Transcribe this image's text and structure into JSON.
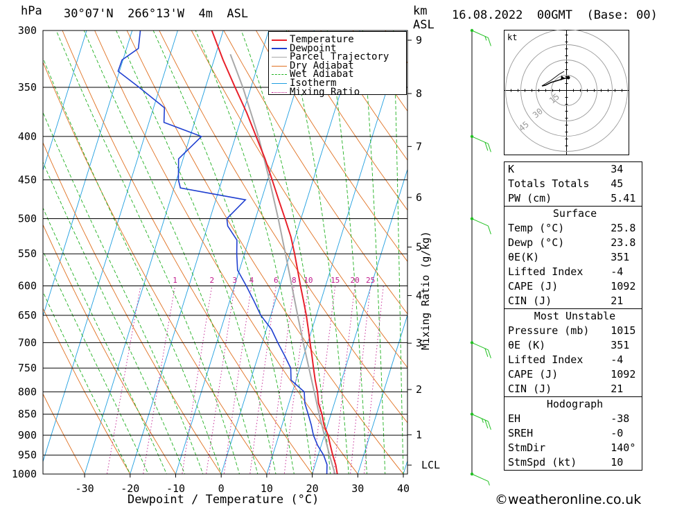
{
  "header": {
    "left_unit": "hPa",
    "location": "30°07'N  266°13'W  4m  ASL",
    "km_unit": "km",
    "asl_unit": "ASL",
    "datetime": "16.08.2022  00GMT  (Base: 00)"
  },
  "chart_data": {
    "type": "skew-t",
    "xlabel": "Dewpoint / Temperature (°C)",
    "y2label": "Mixing Ratio (g/kg)",
    "pressure_ticks": [
      300,
      350,
      400,
      450,
      500,
      550,
      600,
      650,
      700,
      750,
      800,
      850,
      900,
      950,
      1000
    ],
    "temperature_ticks": [
      -30,
      -20,
      -10,
      0,
      10,
      20,
      30,
      40
    ],
    "km_ticks": [
      1,
      2,
      3,
      4,
      5,
      6,
      7,
      8,
      9
    ],
    "lcl_label": "LCL",
    "mixing_ratio_labels": [
      "1",
      "2",
      "3",
      "4",
      "6",
      "8",
      "10",
      "15",
      "20",
      "25"
    ],
    "legend": [
      "Temperature",
      "Dewpoint",
      "Parcel Trajectory",
      "Dry Adiabat",
      "Wet Adiabat",
      "Isotherm",
      "Mixing Ratio"
    ],
    "colors": {
      "temperature": "#e8202a",
      "dewpoint": "#1f3fd0",
      "parcel": "#a8a8a8",
      "dry_adiabat": "#e07020",
      "wet_adiabat": "#20b020",
      "isotherm": "#1e9ee0",
      "mixing_ratio": "#c0188c"
    },
    "temperature": [
      [
        1010,
        25.8
      ],
      [
        1000,
        25.5
      ],
      [
        975,
        24.5
      ],
      [
        950,
        23.2
      ],
      [
        925,
        22.0
      ],
      [
        900,
        20.8
      ],
      [
        875,
        19.2
      ],
      [
        850,
        18.0
      ],
      [
        825,
        16.5
      ],
      [
        800,
        15.5
      ],
      [
        775,
        14.2
      ],
      [
        750,
        13.0
      ],
      [
        725,
        11.8
      ],
      [
        700,
        10.5
      ],
      [
        675,
        9.2
      ],
      [
        650,
        7.8
      ],
      [
        625,
        6.2
      ],
      [
        600,
        4.5
      ],
      [
        575,
        2.8
      ],
      [
        550,
        1.0
      ],
      [
        525,
        -1.0
      ],
      [
        500,
        -3.5
      ],
      [
        475,
        -6.2
      ],
      [
        450,
        -9.0
      ],
      [
        425,
        -12.0
      ],
      [
        400,
        -15.5
      ],
      [
        375,
        -19.2
      ],
      [
        350,
        -23.5
      ],
      [
        325,
        -28.0
      ],
      [
        300,
        -32.5
      ]
    ],
    "dewpoint": [
      [
        1010,
        23.8
      ],
      [
        1000,
        23.2
      ],
      [
        975,
        22.6
      ],
      [
        950,
        21.2
      ],
      [
        925,
        19.2
      ],
      [
        900,
        17.6
      ],
      [
        875,
        16.4
      ],
      [
        850,
        15.0
      ],
      [
        825,
        13.5
      ],
      [
        800,
        12.6
      ],
      [
        775,
        8.9
      ],
      [
        750,
        8.0
      ],
      [
        725,
        5.8
      ],
      [
        700,
        3.4
      ],
      [
        675,
        1.1
      ],
      [
        650,
        -2.2
      ],
      [
        625,
        -4.7
      ],
      [
        600,
        -7.4
      ],
      [
        575,
        -10.4
      ],
      [
        550,
        -11.7
      ],
      [
        530,
        -12.6
      ],
      [
        510,
        -15.6
      ],
      [
        500,
        -16.3
      ],
      [
        475,
        -13.5
      ],
      [
        460,
        -28.6
      ],
      [
        450,
        -29.6
      ],
      [
        425,
        -31.0
      ],
      [
        400,
        -27.5
      ],
      [
        385,
        -36.7
      ],
      [
        370,
        -37.6
      ],
      [
        350,
        -44.6
      ],
      [
        335,
        -50.3
      ],
      [
        325,
        -50.2
      ],
      [
        315,
        -47.4
      ],
      [
        300,
        -48.2
      ]
    ],
    "parcel": [
      [
        1010,
        25.8
      ],
      [
        1000,
        25.0
      ],
      [
        950,
        22.5
      ],
      [
        900,
        20.0
      ],
      [
        850,
        17.4
      ],
      [
        800,
        14.8
      ],
      [
        750,
        12.0
      ],
      [
        700,
        9.0
      ],
      [
        650,
        5.9
      ],
      [
        600,
        2.6
      ],
      [
        550,
        -1.0
      ],
      [
        500,
        -5.0
      ],
      [
        450,
        -9.6
      ],
      [
        400,
        -15.0
      ],
      [
        350,
        -21.8
      ],
      [
        320,
        -26.8
      ]
    ],
    "wind": [
      {
        "p": 300,
        "speed_kt": 15
      },
      {
        "p": 400,
        "speed_kt": 20
      },
      {
        "p": 500,
        "speed_kt": 10
      },
      {
        "p": 700,
        "speed_kt": 20
      },
      {
        "p": 850,
        "speed_kt": 25
      },
      {
        "p": 1000,
        "speed_kt": 5
      }
    ]
  },
  "hodograph": {
    "unit": "kt",
    "ring_labels": [
      "15",
      "30",
      "45"
    ]
  },
  "indices": {
    "top": [
      {
        "label": "K",
        "value": "34"
      },
      {
        "label": "Totals Totals",
        "value": "45"
      },
      {
        "label": "PW (cm)",
        "value": "5.41"
      }
    ],
    "surface_title": "Surface",
    "surface": [
      {
        "label": "Temp (°C)",
        "value": "25.8"
      },
      {
        "label": "Dewp (°C)",
        "value": "23.8"
      },
      {
        "label": "θE(K)",
        "value": "351"
      },
      {
        "label": "Lifted Index",
        "value": "-4"
      },
      {
        "label": "CAPE (J)",
        "value": "1092"
      },
      {
        "label": "CIN (J)",
        "value": "21"
      }
    ],
    "mu_title": "Most Unstable",
    "mu": [
      {
        "label": "Pressure (mb)",
        "value": "1015"
      },
      {
        "label": "θE (K)",
        "value": "351"
      },
      {
        "label": "Lifted Index",
        "value": "-4"
      },
      {
        "label": "CAPE (J)",
        "value": "1092"
      },
      {
        "label": "CIN (J)",
        "value": "21"
      }
    ],
    "hodo_title": "Hodograph",
    "hodo": [
      {
        "label": "EH",
        "value": "-38"
      },
      {
        "label": "SREH",
        "value": "-0"
      },
      {
        "label": "StmDir",
        "value": "140°"
      },
      {
        "label": "StmSpd (kt)",
        "value": "10"
      }
    ]
  },
  "footer": {
    "copyright": "©weatheronline.co.uk"
  }
}
